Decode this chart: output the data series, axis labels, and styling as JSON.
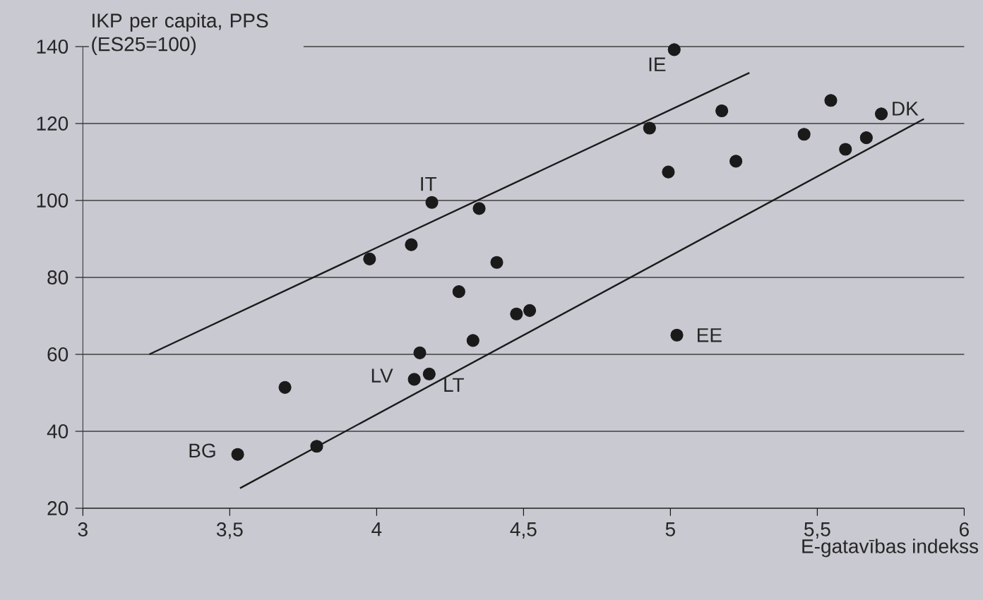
{
  "chart_data": {
    "type": "scatter",
    "xlabel": "E-gatavības indekss",
    "ylabel": "IKP per capita, PPS (ES25=100)",
    "xlim": [
      3,
      6
    ],
    "ylim": [
      20,
      140
    ],
    "xticks": [
      3,
      {
        "value": 3.5,
        "label": "3,5"
      },
      4,
      {
        "value": 4.5,
        "label": "4,5"
      },
      5,
      {
        "value": 5.5,
        "label": "5,5"
      },
      6
    ],
    "yticks": [
      20,
      40,
      60,
      80,
      100,
      120,
      140
    ],
    "grid": "y",
    "series": [
      {
        "marker": "circle",
        "color": "#1a1a1a",
        "x": [
          3.527,
          3.688,
          3.796,
          3.976,
          4.118,
          4.128,
          4.147,
          4.179,
          4.188,
          4.28,
          4.328,
          4.349,
          4.409,
          4.476,
          4.521,
          4.929,
          4.993,
          5.013,
          5.022,
          5.175,
          5.223,
          5.455,
          5.546,
          5.596,
          5.667,
          5.718
        ],
        "values": [
          34.0,
          51.4,
          36.1,
          84.8,
          88.5,
          53.5,
          60.4,
          54.9,
          99.5,
          76.3,
          63.6,
          97.9,
          83.9,
          70.5,
          71.4,
          118.8,
          107.4,
          139.2,
          65.0,
          123.3,
          110.2,
          117.2,
          126.0,
          113.3,
          116.3,
          122.5
        ]
      },
      {
        "type": "line",
        "marker": "none",
        "line_style": "solid",
        "color": "#1a1a1a",
        "x": [
          3.226,
          5.269
        ],
        "values": [
          60,
          133.2
        ]
      },
      {
        "type": "line",
        "marker": "none",
        "line_style": "solid",
        "color": "#1a1a1a",
        "x": [
          3.535,
          5.863
        ],
        "values": [
          25.2,
          121.2
        ]
      }
    ],
    "annotations": [
      {
        "text": "IE",
        "x": 5.013,
        "y": 139.2
      },
      {
        "text": "IT",
        "x": 4.188,
        "y": 99.5
      },
      {
        "text": "LV",
        "x": 4.128,
        "y": 53.5
      },
      {
        "text": "LT",
        "x": 4.179,
        "y": 54.9
      },
      {
        "text": "BG",
        "x": 3.527,
        "y": 34.0
      },
      {
        "text": "EE",
        "x": 5.022,
        "y": 65.0
      },
      {
        "text": "DK",
        "x": 5.718,
        "y": 122.5
      }
    ]
  }
}
